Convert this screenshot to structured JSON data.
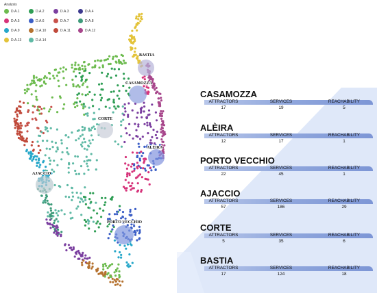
{
  "legend": {
    "title": "Analysis",
    "items": [
      {
        "label": "D.A.1",
        "color": "#6dbb4f"
      },
      {
        "label": "D.A.2",
        "color": "#2f9e55"
      },
      {
        "label": "D.A.3",
        "color": "#7b3fa0"
      },
      {
        "label": "D.A.4",
        "color": "#3d3a8f"
      },
      {
        "label": "D.A.5",
        "color": "#d6337a"
      },
      {
        "label": "D.A.6",
        "color": "#3b5ec6"
      },
      {
        "label": "D.A.7",
        "color": "#c8524b"
      },
      {
        "label": "D.A.8",
        "color": "#3e9b7a"
      },
      {
        "label": "D.A.9",
        "color": "#27a7c9"
      },
      {
        "label": "D.A.10",
        "color": "#b5722f"
      },
      {
        "label": "D.A.11",
        "color": "#c04a3b"
      },
      {
        "label": "D.A.12",
        "color": "#a8478c"
      },
      {
        "label": "D.A.13",
        "color": "#e3c33a"
      },
      {
        "label": "D.A.14",
        "color": "#5fb9a5"
      }
    ]
  },
  "map_labels": [
    "BASTIA",
    "CASAMOZZA",
    "CORTE",
    "ALÈIRA",
    "AJACCIO",
    "PORTO VECCHIO"
  ],
  "columns": [
    "ATTRACTORS",
    "SERVICES",
    "REACHABILITY"
  ],
  "stats": [
    {
      "name": "CASAMOZZA",
      "attractors": "17",
      "services": "19",
      "reachability": "5"
    },
    {
      "name": "ALÈIRA",
      "attractors": "12",
      "services": "17",
      "reachability": "1"
    },
    {
      "name": "PORTO VECCHIO",
      "attractors": "22",
      "services": "45",
      "reachability": "1"
    },
    {
      "name": "AJACCIO",
      "attractors": "57",
      "services": "186",
      "reachability": "29"
    },
    {
      "name": "CORTE",
      "attractors": "5",
      "services": "35",
      "reachability": "6"
    },
    {
      "name": "BASTIA",
      "attractors": "17",
      "services": "124",
      "reachability": "18"
    }
  ]
}
